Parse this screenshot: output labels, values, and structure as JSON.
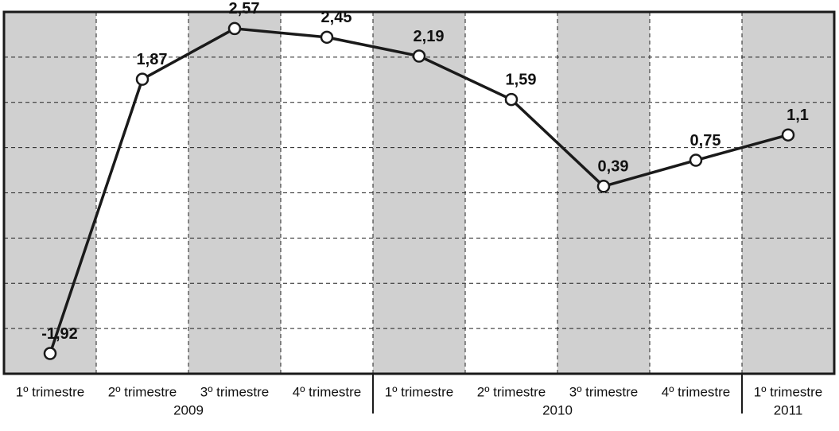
{
  "chart_data": {
    "type": "line",
    "groups": [
      {
        "label": "2009",
        "categories": [
          "1º trimestre",
          "2º trimestre",
          "3º trimestre",
          "4º trimestre"
        ]
      },
      {
        "label": "2010",
        "categories": [
          "1º trimestre",
          "2º trimestre",
          "3º trimestre",
          "4º trimestre"
        ]
      },
      {
        "label": "2011",
        "categories": [
          "1º trimestre"
        ]
      }
    ],
    "values": [
      -1.92,
      1.87,
      2.57,
      2.45,
      2.19,
      1.59,
      0.39,
      0.75,
      1.1
    ],
    "value_labels": [
      "-1,92",
      "1,87",
      "2,57",
      "2,45",
      "2,19",
      "1,59",
      "0,39",
      "0,75",
      "1,1"
    ],
    "color": "#1a1a1a",
    "ylim": [
      -2.2,
      2.8
    ]
  }
}
